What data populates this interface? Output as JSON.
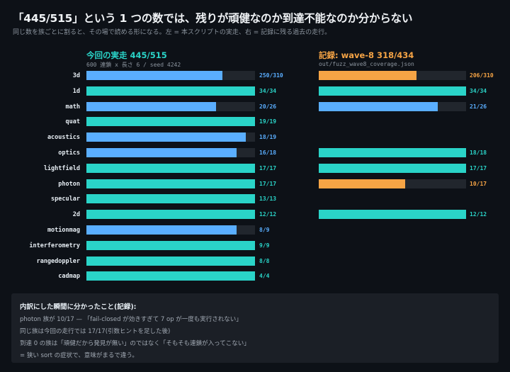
{
  "header": {
    "title": "「445/515」という 1 つの数では、残りが頑健なのか到達不能なのか分からない",
    "subtitle": "同じ数を族ごとに割ると、その場で読める形になる。左 = 本スクリプトの実走、右 = 記録に残る過去の走行。"
  },
  "left_panel": {
    "heading": "今回の実走  445/515",
    "subheading": "600 連鎖 x 長さ 6 / seed 4242"
  },
  "right_panel": {
    "heading": "記録: wave-8  318/434",
    "subheading": "out/fuzz_wave8_coverage.json"
  },
  "colors": {
    "complete": "#2ad4c8",
    "partial_current": "#5aaeff",
    "partial_record": "#f6a445",
    "track": "#21262d"
  },
  "rows": [
    {
      "label": "3d",
      "left_value": "250/310",
      "left_fraction": 0.806,
      "right_value": "206/310",
      "right_fraction": 0.665
    },
    {
      "label": "1d",
      "left_value": "34/34",
      "left_fraction": 1,
      "right_value": "34/34",
      "right_fraction": 1
    },
    {
      "label": "math",
      "left_value": "20/26",
      "left_fraction": 0.769,
      "right_value": "21/26",
      "right_fraction": 0.808
    },
    {
      "label": "quat",
      "left_value": "19/19",
      "left_fraction": 1,
      "right_value": "",
      "right_fraction": 0
    },
    {
      "label": "acoustics",
      "left_value": "18/19",
      "left_fraction": 0.947,
      "right_value": "",
      "right_fraction": 0
    },
    {
      "label": "optics",
      "left_value": "16/18",
      "left_fraction": 0.889,
      "right_value": "18/18",
      "right_fraction": 1
    },
    {
      "label": "lightfield",
      "left_value": "17/17",
      "left_fraction": 1,
      "right_value": "17/17",
      "right_fraction": 1
    },
    {
      "label": "photon",
      "left_value": "17/17",
      "left_fraction": 1,
      "right_value": "10/17",
      "right_fraction": 0.588
    },
    {
      "label": "specular",
      "left_value": "13/13",
      "left_fraction": 1,
      "right_value": "",
      "right_fraction": 0
    },
    {
      "label": "2d",
      "left_value": "12/12",
      "left_fraction": 1,
      "right_value": "12/12",
      "right_fraction": 1
    },
    {
      "label": "motionmag",
      "left_value": "8/9",
      "left_fraction": 0.889,
      "right_value": "",
      "right_fraction": 0
    },
    {
      "label": "interferometry",
      "left_value": "9/9",
      "left_fraction": 1,
      "right_value": "",
      "right_fraction": 0
    },
    {
      "label": "rangedoppler",
      "left_value": "8/8",
      "left_fraction": 1,
      "right_value": "",
      "right_fraction": 0
    },
    {
      "label": "cadmap",
      "left_value": "4/4",
      "left_fraction": 1,
      "right_value": "",
      "right_fraction": 0
    }
  ],
  "notes": {
    "title": "内訳にした瞬間に分かったこと(記録):",
    "lines": [
      "photon 族が 10/17 — 「fail-closed が効きすぎて 7 op が一度も実行されない」",
      "同じ族は今回の走行では 17/17(引数ヒントを足した後)",
      "到達 0 の族は「頑健だから発見が無い」のではなく「そもそも連鎖が入ってこない」",
      "= 狭い sort の症状で、意味がまるで違う。"
    ]
  }
}
